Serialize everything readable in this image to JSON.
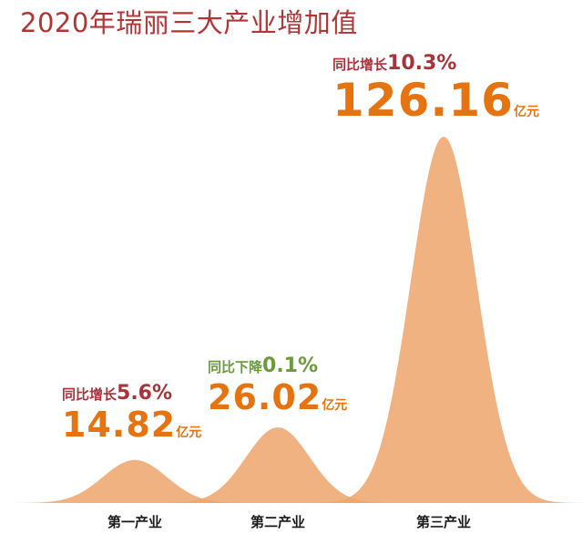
{
  "title": "2020年瑞丽三大产业增加值",
  "colors": {
    "fill": "#eea46c",
    "title": "#b03535",
    "growth_label": "#a8343a",
    "decline_label": "#6b9a3a",
    "value": "#e5730f"
  },
  "chart_data": {
    "type": "area",
    "title": "2020年瑞丽三大产业增加值",
    "categories": [
      "第一产业",
      "第二产业",
      "第三产业"
    ],
    "values": [
      14.82,
      26.02,
      126.16
    ],
    "unit": "亿元",
    "ylim": [
      0,
      130
    ],
    "grid": false,
    "legend": "none",
    "annotations": [
      {
        "category": "第一产业",
        "change_text": "同比增长",
        "change_value": "5.6%",
        "value_text": "14.82",
        "unit": "亿元",
        "direction": "up"
      },
      {
        "category": "第二产业",
        "change_text": "同比下降",
        "change_value": "0.1%",
        "value_text": "26.02",
        "unit": "亿元",
        "direction": "down"
      },
      {
        "category": "第三产业",
        "change_text": "同比增长",
        "change_value": "10.3%",
        "value_text": "126.16",
        "unit": "亿元",
        "direction": "up"
      }
    ]
  }
}
